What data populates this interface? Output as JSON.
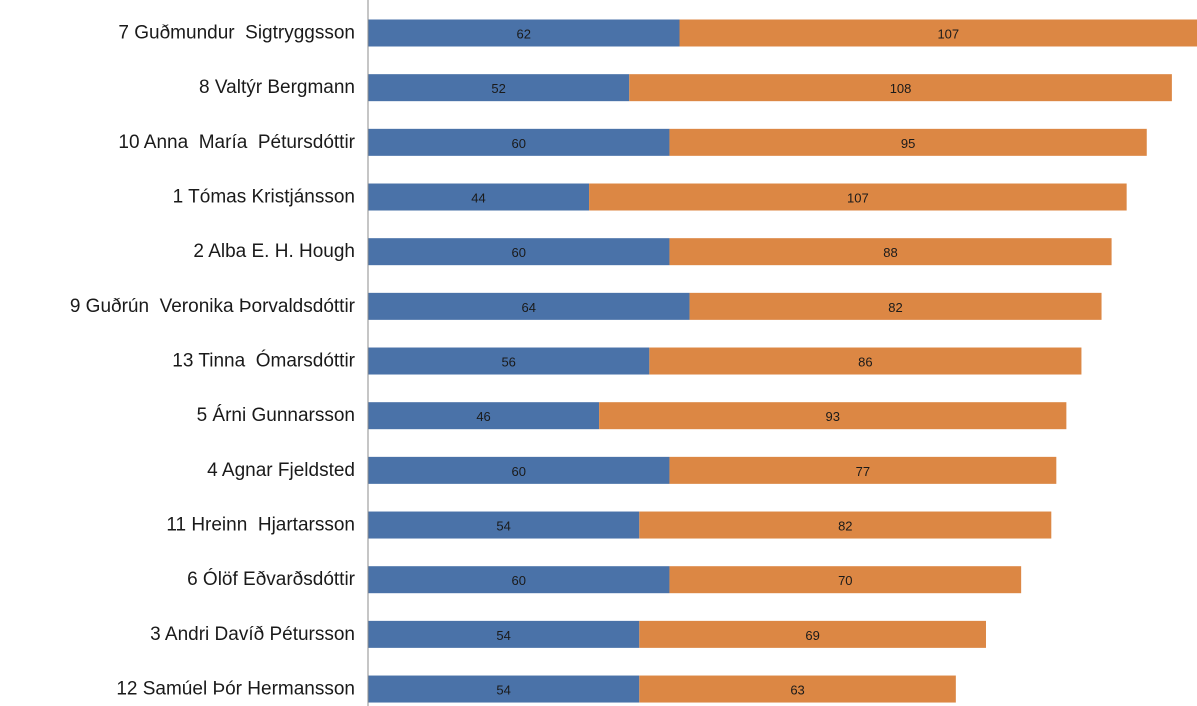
{
  "chart_data": {
    "type": "bar",
    "orientation": "horizontal",
    "stacked": true,
    "title": "",
    "xlabel": "",
    "ylabel": "",
    "legend": "none",
    "grid": false,
    "categories": [
      "7 Guðmundur  Sigtryggsson",
      "8 Valtýr Bergmann",
      "10 Anna  María  Pétursdóttir",
      "1 Tómas Kristjánsson",
      "2 Alba E. H. Hough",
      "9 Guðrún  Veronika Þorvaldsdóttir",
      "13 Tinna  Ómarsdóttir",
      "5 Árni Gunnarsson",
      "4 Agnar Fjeldsted",
      "11 Hreinn  Hjartarsson",
      "6 Ólöf Eðvarðsdóttir",
      "3 Andri Davíð Pétursson",
      "12 Samúel Þór Hermansson"
    ],
    "series": [
      {
        "color": "#4a72a8",
        "values": [
          62,
          52,
          60,
          44,
          60,
          64,
          56,
          46,
          60,
          54,
          60,
          54,
          54
        ]
      },
      {
        "color": "#dc8744",
        "values": [
          107,
          108,
          95,
          107,
          88,
          82,
          86,
          93,
          77,
          82,
          70,
          69,
          63
        ]
      }
    ],
    "xlim": [
      0,
      165
    ]
  }
}
